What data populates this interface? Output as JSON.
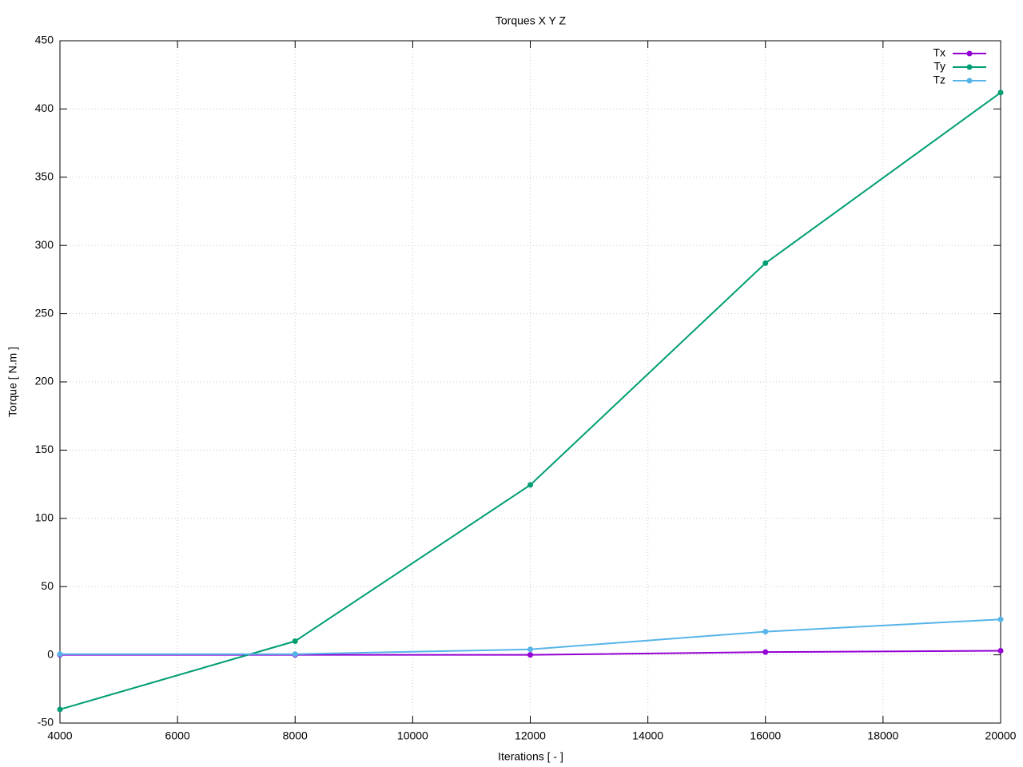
{
  "chart_data": {
    "type": "line",
    "title": "Torques X Y Z",
    "x_label": "Iterations [ - ]",
    "y_label": "Torque [ N.m ]",
    "x": [
      4000,
      8000,
      12000,
      16000,
      20000
    ],
    "series": [
      {
        "name": "Tx",
        "color": "#9400d3",
        "values": [
          0,
          0,
          0,
          2,
          3
        ]
      },
      {
        "name": "Ty",
        "color": "#009e73",
        "values": [
          -40,
          10,
          124.5,
          287,
          412
        ]
      },
      {
        "name": "Tz",
        "color": "#56b4e9",
        "values": [
          0.5,
          0.5,
          4,
          17,
          26
        ]
      }
    ],
    "xlim": [
      4000,
      20000
    ],
    "xticks": [
      4000,
      6000,
      8000,
      10000,
      12000,
      14000,
      16000,
      18000,
      20000
    ],
    "ylim": [
      -50,
      450
    ],
    "yticks": [
      -50,
      0,
      50,
      100,
      150,
      200,
      250,
      300,
      350,
      400,
      450
    ],
    "grid": true,
    "legend": "top-right"
  }
}
